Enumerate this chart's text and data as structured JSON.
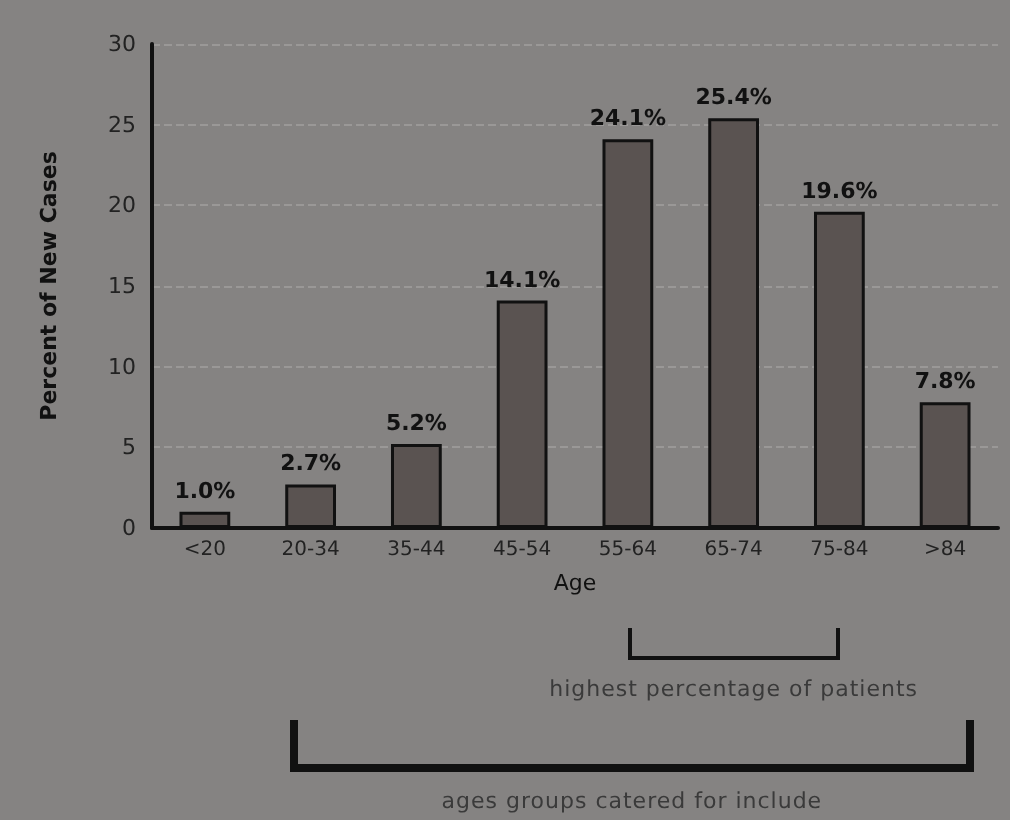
{
  "chart_data": {
    "type": "bar",
    "xlabel": "Age",
    "ylabel": "Percent of New Cases",
    "categories": [
      "<20",
      "20-34",
      "35-44",
      "45-54",
      "55-64",
      "65-74",
      "75-84",
      ">84"
    ],
    "values": [
      1.0,
      2.7,
      5.2,
      14.1,
      24.1,
      25.4,
      19.6,
      7.8
    ],
    "value_labels": [
      "1.0%",
      "2.7%",
      "5.2%",
      "14.1%",
      "24.1%",
      "25.4%",
      "19.6%",
      "7.8%"
    ],
    "color": "#5a5351",
    "ylim": [
      0,
      30
    ],
    "yticks": [
      0,
      5,
      10,
      15,
      20,
      25,
      30
    ],
    "grid": "y",
    "annotations": [
      "highest percentage of patients",
      "ages groups catered for  include"
    ]
  }
}
